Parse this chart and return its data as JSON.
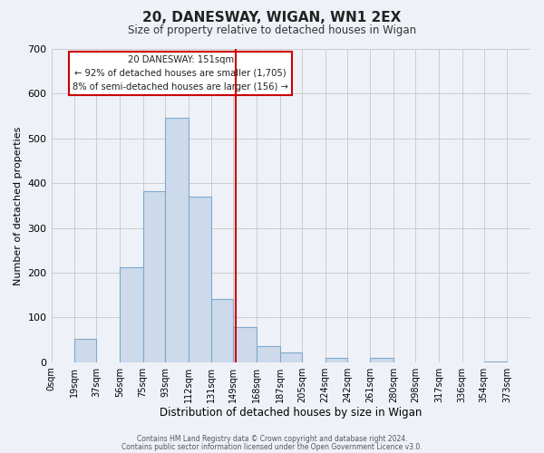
{
  "title": "20, DANESWAY, WIGAN, WN1 2EX",
  "subtitle": "Size of property relative to detached houses in Wigan",
  "xlabel": "Distribution of detached houses by size in Wigan",
  "ylabel": "Number of detached properties",
  "bar_left_edges": [
    0,
    19,
    37,
    56,
    75,
    93,
    112,
    131,
    149,
    168,
    187,
    205,
    224,
    242,
    261,
    280,
    298,
    317,
    336,
    354
  ],
  "bar_widths": [
    19,
    18,
    19,
    19,
    18,
    19,
    19,
    18,
    19,
    19,
    18,
    19,
    18,
    19,
    19,
    18,
    19,
    19,
    18,
    19
  ],
  "bar_heights": [
    0,
    52,
    0,
    213,
    382,
    547,
    370,
    142,
    78,
    35,
    22,
    0,
    9,
    0,
    10,
    0,
    0,
    0,
    0,
    2
  ],
  "bar_color": "#ccdaeb",
  "bar_edgecolor": "#7fa8cc",
  "vline_x": 151,
  "vline_color": "#cc0000",
  "ylim": [
    0,
    700
  ],
  "yticks": [
    0,
    100,
    200,
    300,
    400,
    500,
    600,
    700
  ],
  "xtick_labels": [
    "0sqm",
    "19sqm",
    "37sqm",
    "56sqm",
    "75sqm",
    "93sqm",
    "112sqm",
    "131sqm",
    "149sqm",
    "168sqm",
    "187sqm",
    "205sqm",
    "224sqm",
    "242sqm",
    "261sqm",
    "280sqm",
    "298sqm",
    "317sqm",
    "336sqm",
    "354sqm",
    "373sqm"
  ],
  "xtick_positions": [
    0,
    19,
    37,
    56,
    75,
    93,
    112,
    131,
    149,
    168,
    187,
    205,
    224,
    242,
    261,
    280,
    298,
    317,
    336,
    354,
    373
  ],
  "annotation_title": "20 DANESWAY: 151sqm",
  "annotation_line1": "← 92% of detached houses are smaller (1,705)",
  "annotation_line2": "8% of semi-detached houses are larger (156) →",
  "footer1": "Contains HM Land Registry data © Crown copyright and database right 2024.",
  "footer2": "Contains public sector information licensed under the Open Government Licence v3.0.",
  "bg_color": "#eef2f8",
  "grid_color": "#cccccc",
  "xlim_max": 392
}
